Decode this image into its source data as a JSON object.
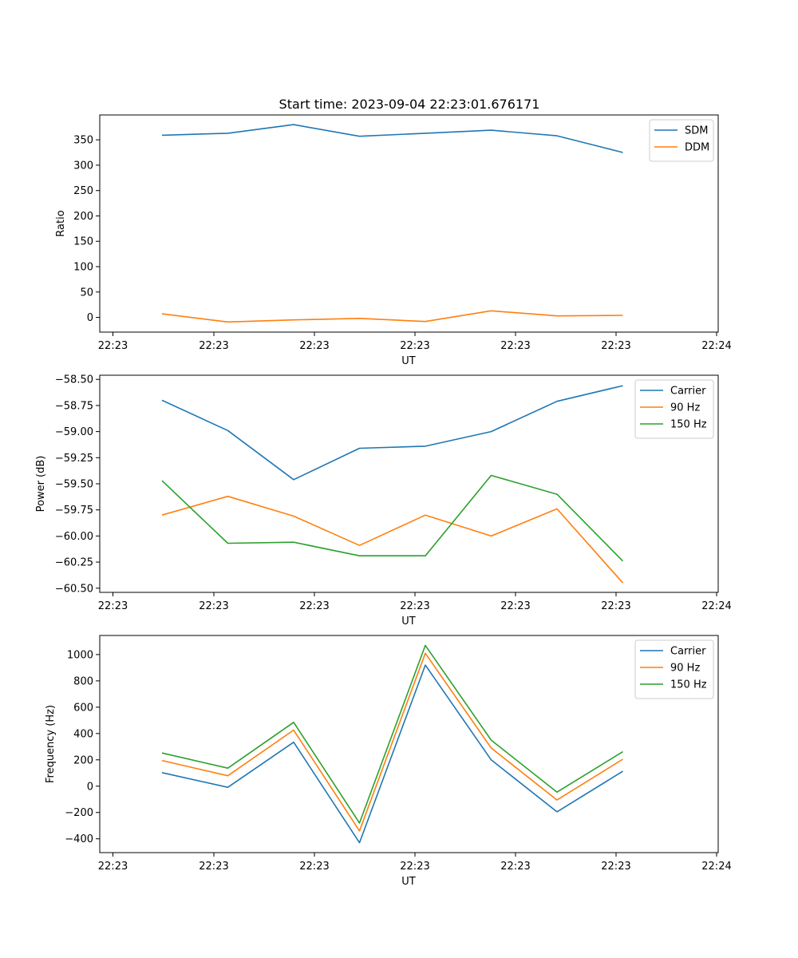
{
  "chart_data": [
    {
      "type": "line",
      "title": "Start time: 2023-09-04 22:23:01.676171",
      "xlabel": "UT",
      "ylabel": "Ratio",
      "x_tick_labels": [
        "22:23",
        "22:23",
        "22:23",
        "22:23",
        "22:23",
        "22:23",
        "22:23"
      ],
      "x_tick_label_last": "22:24",
      "y_ticks": [
        0,
        50,
        100,
        150,
        200,
        250,
        300,
        350
      ],
      "y_tick_labels": [
        "0",
        "50",
        "100",
        "150",
        "200",
        "250",
        "300",
        "350"
      ],
      "ylim": [
        -29,
        399
      ],
      "legend_position": "top-right",
      "series": [
        {
          "name": "SDM",
          "color": "#1f77b4",
          "values": [
            359,
            363,
            380,
            357,
            363,
            369,
            358,
            325
          ]
        },
        {
          "name": "DDM",
          "color": "#ff7f0e",
          "values": [
            7,
            -9,
            -5,
            -2,
            -8,
            13,
            3,
            4
          ]
        }
      ]
    },
    {
      "type": "line",
      "title": "",
      "xlabel": "UT",
      "ylabel": "Power (dB)",
      "x_tick_labels": [
        "22:23",
        "22:23",
        "22:23",
        "22:23",
        "22:23",
        "22:23",
        "22:23"
      ],
      "x_tick_label_last": "22:24",
      "y_ticks": [
        -60.5,
        -60.25,
        -60.0,
        -59.75,
        -59.5,
        -59.25,
        -59.0,
        -58.75,
        -58.5
      ],
      "y_tick_labels": [
        "−60.50",
        "−60.25",
        "−60.00",
        "−59.75",
        "−59.50",
        "−59.25",
        "−59.00",
        "−58.75",
        "−58.50"
      ],
      "ylim": [
        -60.54,
        -58.46
      ],
      "legend_position": "top-right",
      "series": [
        {
          "name": "Carrier",
          "color": "#1f77b4",
          "values": [
            -58.7,
            -58.99,
            -59.46,
            -59.16,
            -59.14,
            -59.0,
            -58.71,
            -58.56
          ]
        },
        {
          "name": "90 Hz",
          "color": "#ff7f0e",
          "values": [
            -59.8,
            -59.62,
            -59.81,
            -60.09,
            -59.8,
            -60.0,
            -59.74,
            -60.45
          ]
        },
        {
          "name": "150 Hz",
          "color": "#2ca02c",
          "values": [
            -59.47,
            -60.07,
            -60.06,
            -60.19,
            -60.19,
            -59.42,
            -59.6,
            -60.24
          ]
        }
      ]
    },
    {
      "type": "line",
      "title": "",
      "xlabel": "UT",
      "ylabel": "Frequency (Hz)",
      "x_tick_labels": [
        "22:23",
        "22:23",
        "22:23",
        "22:23",
        "22:23",
        "22:23",
        "22:23"
      ],
      "x_tick_label_last": "22:24",
      "y_ticks": [
        -400,
        -200,
        0,
        200,
        400,
        600,
        800,
        1000
      ],
      "y_tick_labels": [
        "−400",
        "−200",
        "0",
        "200",
        "400",
        "600",
        "800",
        "1000"
      ],
      "ylim": [
        -505,
        1145
      ],
      "legend_position": "top-right",
      "series": [
        {
          "name": "Carrier",
          "color": "#1f77b4",
          "values": [
            103,
            -9,
            334,
            -430,
            920,
            200,
            -195,
            113
          ]
        },
        {
          "name": "90 Hz",
          "color": "#ff7f0e",
          "values": [
            195,
            79,
            426,
            -340,
            1010,
            290,
            -105,
            205
          ]
        },
        {
          "name": "150 Hz",
          "color": "#2ca02c",
          "values": [
            252,
            137,
            485,
            -280,
            1070,
            350,
            -45,
            262
          ]
        }
      ]
    }
  ]
}
